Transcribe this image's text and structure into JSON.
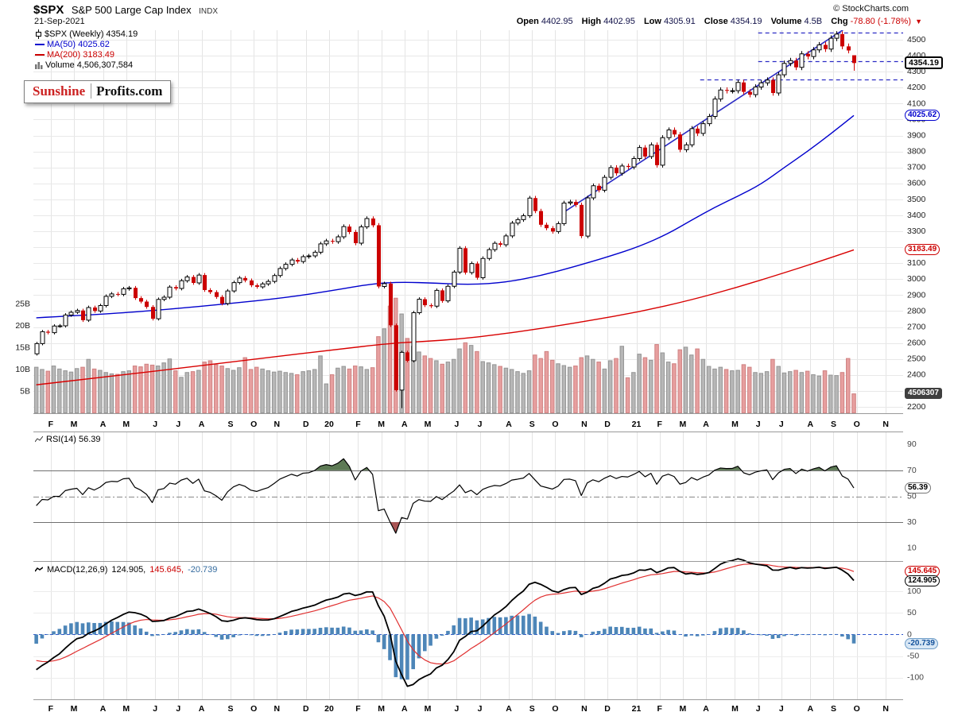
{
  "header": {
    "symbol": "$SPX",
    "index_name": "S&P 500 Large Cap Index",
    "exchange": "INDX",
    "date": "21-Sep-2021",
    "copyright": "© StockCharts.com",
    "quote": {
      "open_label": "Open",
      "open": "4402.95",
      "high_label": "High",
      "high": "4402.95",
      "low_label": "Low",
      "low": "4305.91",
      "close_label": "Close",
      "close": "4354.19",
      "volume_label": "Volume",
      "volume": "4.5B",
      "chg_label": "Chg",
      "chg": "-78.80 (-1.78%)",
      "chg_arrow": "▼"
    }
  },
  "logo": {
    "left": "Sunshine",
    "right": "Profits.com"
  },
  "legend": {
    "price": "$SPX (Weekly) 4354.19",
    "ma50": "MA(50) 4025.62",
    "ma200": "MA(200) 3183.49",
    "volume": "Volume 4,506,307,584"
  },
  "panel_labels": {
    "rsi": "RSI(14) 56.39",
    "macd_name": "MACD(12,26,9)",
    "macd_value": "124.905,",
    "macd_signal": "145.645,",
    "macd_hist": "-20.739"
  },
  "axis_labels": {
    "close_box": "4354.19",
    "ma50_box": "4025.62",
    "ma200_box": "3183.49",
    "volume_box": "4506307",
    "rsi_box": "56.39",
    "macd_signal_box": "145.645",
    "macd_line_box": "124.905",
    "macd_hist_box": "-20.739"
  },
  "colors": {
    "background": "#ffffff",
    "candle_up": "#000000",
    "candle_down": "#cc0000",
    "ma50": "#0000cd",
    "ma200": "#d80000",
    "volume_up": "#b7b7b7",
    "volume_down": "#e79f9f",
    "trendline": "#2b2bc4",
    "dashed_level": "#2b2bc4",
    "macd_hist": "#4d86b8",
    "macd_line": "#000000",
    "macd_signal": "#e03030",
    "rsi_line": "#000000",
    "rsi_overbought_fill": "#5d7a55",
    "rsi_oversold_fill": "#aa5555",
    "grid": "#e4e4e4",
    "chg_negative": "#cc0000"
  },
  "chart_data": {
    "type": "candlestick",
    "timeframe": "weekly",
    "title": "$SPX S&P 500 Large Cap Index",
    "panels": [
      "price+volume",
      "rsi",
      "macd"
    ],
    "total_slots": 150,
    "price_axis": {
      "min": 2160,
      "max": 4560,
      "tick_min": 2200,
      "tick_max": 4500,
      "tick_step": 100
    },
    "volume_axis": {
      "ticks_billions": [
        5,
        10,
        15,
        20,
        25
      ]
    },
    "rsi_axis": {
      "ticks": [
        90,
        70,
        50,
        30,
        10
      ],
      "overbought": 70,
      "oversold": 30,
      "mid": 50
    },
    "macd_axis": {
      "ticks": [
        100,
        50,
        0,
        -50,
        -100
      ],
      "min": -150,
      "max": 170
    },
    "month_labels": [
      [
        "F",
        3
      ],
      [
        "M",
        7
      ],
      [
        "A",
        12
      ],
      [
        "M",
        16
      ],
      [
        "J",
        21
      ],
      [
        "J",
        25
      ],
      [
        "A",
        29
      ],
      [
        "S",
        34
      ],
      [
        "O",
        38
      ],
      [
        "N",
        42
      ],
      [
        "D",
        47
      ],
      [
        "20",
        51
      ],
      [
        "F",
        56
      ],
      [
        "M",
        60
      ],
      [
        "A",
        64
      ],
      [
        "M",
        68
      ],
      [
        "J",
        73
      ],
      [
        "J",
        77
      ],
      [
        "A",
        82
      ],
      [
        "S",
        86
      ],
      [
        "O",
        90
      ],
      [
        "N",
        95
      ],
      [
        "D",
        99
      ],
      [
        "21",
        104
      ],
      [
        "F",
        108
      ],
      [
        "M",
        112
      ],
      [
        "A",
        116
      ],
      [
        "M",
        121
      ],
      [
        "J",
        125
      ],
      [
        "J",
        129
      ],
      [
        "A",
        134
      ],
      [
        "S",
        138
      ],
      [
        "O",
        142
      ],
      [
        "N",
        147
      ]
    ],
    "pre_closes": [
      2840.35,
      2833.28,
      2850.13,
      2874.69,
      2901.52,
      2871.68,
      2904.98,
      2929.67,
      2913.98,
      2885.57,
      2767.13,
      2767.78,
      2658.69,
      2723.06,
      2781.01,
      2736.27,
      2632.56,
      2760.17,
      2633.08,
      2599.95,
      2416.62,
      2485.74,
      2531.94
    ],
    "closes": [
      2596.26,
      2670.71,
      2664.76,
      2706.53,
      2707.88,
      2775.6,
      2792.67,
      2803.69,
      2743.07,
      2822.48,
      2800.71,
      2834.4,
      2892.74,
      2907.41,
      2905.03,
      2939.88,
      2945.64,
      2881.4,
      2859.53,
      2826.06,
      2752.06,
      2873.34,
      2886.98,
      2950.46,
      2941.76,
      2990.41,
      3013.77,
      2976.61,
      3025.86,
      2932.05,
      2918.65,
      2888.68,
      2847.11,
      2926.46,
      2978.71,
      3007.39,
      2992.07,
      2961.79,
      2952.01,
      2970.27,
      2986.2,
      3022.55,
      3066.91,
      3093.08,
      3120.46,
      3110.29,
      3140.98,
      3145.91,
      3168.8,
      3221.22,
      3240.02,
      3234.85,
      3265.35,
      3329.62,
      3295.47,
      3225.52,
      3327.71,
      3380.16,
      3337.75,
      2954.22,
      2972.37,
      2711.02,
      2304.92,
      2541.47,
      2488.65,
      2789.82,
      2874.56,
      2836.74,
      2830.71,
      2929.8,
      2863.7,
      2955.45,
      3044.31,
      3193.93,
      3041.31,
      3097.74,
      3009.05,
      3130.01,
      3185.04,
      3224.73,
      3215.63,
      3271.12,
      3351.28,
      3372.85,
      3397.16,
      3508.01,
      3426.96,
      3340.97,
      3319.47,
      3298.46,
      3348.42,
      3477.13,
      3483.81,
      3465.39,
      3269.96,
      3509.44,
      3585.15,
      3557.54,
      3638.35,
      3699.12,
      3663.46,
      3709.41,
      3703.06,
      3756.07,
      3824.68,
      3768.25,
      3841.47,
      3714.24,
      3886.83,
      3934.83,
      3906.71,
      3811.15,
      3841.94,
      3943.34,
      3913.1,
      3974.54,
      4019.87,
      4128.8,
      4185.47,
      4180.17,
      4181.17,
      4232.6,
      4173.85,
      4155.86,
      4204.11,
      4229.89,
      4247.44,
      4166.45,
      4280.7,
      4352.34,
      4369.55,
      4327.16,
      4411.79,
      4395.26,
      4436.52,
      4468.0,
      4441.67,
      4509.37,
      4535.43,
      4458.58,
      4432.99,
      4354.19
    ],
    "volumes_billions": [
      10.6,
      10.1,
      9.7,
      10.9,
      10.2,
      9.8,
      9.5,
      10.3,
      10.6,
      12.4,
      10.2,
      9.9,
      9.4,
      9.1,
      9.0,
      9.6,
      9.8,
      10.9,
      10.7,
      11.3,
      11.1,
      10.9,
      11.6,
      12.5,
      9.8,
      8.3,
      9.4,
      9.6,
      9.9,
      11.8,
      12.1,
      11.2,
      10.9,
      10.3,
      9.9,
      10.5,
      12.8,
      10.1,
      10.6,
      10.2,
      9.8,
      9.5,
      9.7,
      9.4,
      9.2,
      8.9,
      9.6,
      9.8,
      10.1,
      13.2,
      6.8,
      8.9,
      10.4,
      10.8,
      10.2,
      10.9,
      10.7,
      10.1,
      10.5,
      17.6,
      19.4,
      24.6,
      26.4,
      22.8,
      17.2,
      15.4,
      14.1,
      13.2,
      12.6,
      12.1,
      11.3,
      11.8,
      12.4,
      14.8,
      16.2,
      15.6,
      14.2,
      11.9,
      11.6,
      11.2,
      10.8,
      10.4,
      10.1,
      9.6,
      9.2,
      9.8,
      13.4,
      12.6,
      14.2,
      12.2,
      11.4,
      11.0,
      10.6,
      10.9,
      12.8,
      13.2,
      12.4,
      11.8,
      10.2,
      12.1,
      12.6,
      15.4,
      8.2,
      9.4,
      13.6,
      12.8,
      12.2,
      15.8,
      13.9,
      11.8,
      11.4,
      14.6,
      15.2,
      13.4,
      14.8,
      12.4,
      10.8,
      10.2,
      10.6,
      10.1,
      9.8,
      9.9,
      11.2,
      10.6,
      9.4,
      9.2,
      9.6,
      12.4,
      10.8,
      9.3,
      9.6,
      9.9,
      9.4,
      9.7,
      8.9,
      8.6,
      9.8,
      8.8,
      8.7,
      9.4,
      12.6,
      4.51
    ],
    "ohlc_overrides": {
      "63": {
        "low": 2192
      },
      "141": {
        "open": 4402.95,
        "high": 4402.95,
        "low": 4305.91,
        "close": 4354.19
      }
    },
    "ma50_points": [
      [
        0,
        2758
      ],
      [
        13,
        2783
      ],
      [
        23,
        2812
      ],
      [
        33,
        2846
      ],
      [
        43,
        2884
      ],
      [
        51,
        2928
      ],
      [
        58,
        2972
      ],
      [
        63,
        2982
      ],
      [
        69,
        2975
      ],
      [
        75,
        2965
      ],
      [
        81,
        2980
      ],
      [
        87,
        3022
      ],
      [
        93,
        3080
      ],
      [
        99,
        3145
      ],
      [
        104,
        3205
      ],
      [
        109,
        3285
      ],
      [
        113,
        3370
      ],
      [
        117,
        3450
      ],
      [
        121,
        3520
      ],
      [
        125,
        3595
      ],
      [
        129,
        3700
      ],
      [
        133,
        3800
      ],
      [
        137,
        3910
      ],
      [
        141,
        4025.62
      ]
    ],
    "ma200_points": [
      [
        0,
        2338
      ],
      [
        15,
        2400
      ],
      [
        27,
        2452
      ],
      [
        39,
        2505
      ],
      [
        51,
        2556
      ],
      [
        61,
        2598
      ],
      [
        67,
        2610
      ],
      [
        73,
        2625
      ],
      [
        79,
        2650
      ],
      [
        87,
        2690
      ],
      [
        95,
        2738
      ],
      [
        104,
        2795
      ],
      [
        113,
        2870
      ],
      [
        121,
        2950
      ],
      [
        129,
        3040
      ],
      [
        135,
        3110
      ],
      [
        141,
        3183.49
      ]
    ],
    "trendline": {
      "i1": 91,
      "v1": 3420,
      "i2": 142,
      "v2": 4630
    },
    "dashed_levels": [
      {
        "value": 4546,
        "from_i": 125
      },
      {
        "value": 4368,
        "from_i": 125
      },
      {
        "value": 4252,
        "from_i": 115
      }
    ],
    "indicators": {
      "rsi_period": 14,
      "macd_params": [
        12,
        26,
        9
      ],
      "last_rsi": 56.39,
      "last_macd": 124.905,
      "last_signal": 145.645,
      "last_hist": -20.739,
      "last_close": 4354.19,
      "last_ma50": 4025.62,
      "last_ma200": 3183.49,
      "last_volume_billions": 4.51
    }
  }
}
